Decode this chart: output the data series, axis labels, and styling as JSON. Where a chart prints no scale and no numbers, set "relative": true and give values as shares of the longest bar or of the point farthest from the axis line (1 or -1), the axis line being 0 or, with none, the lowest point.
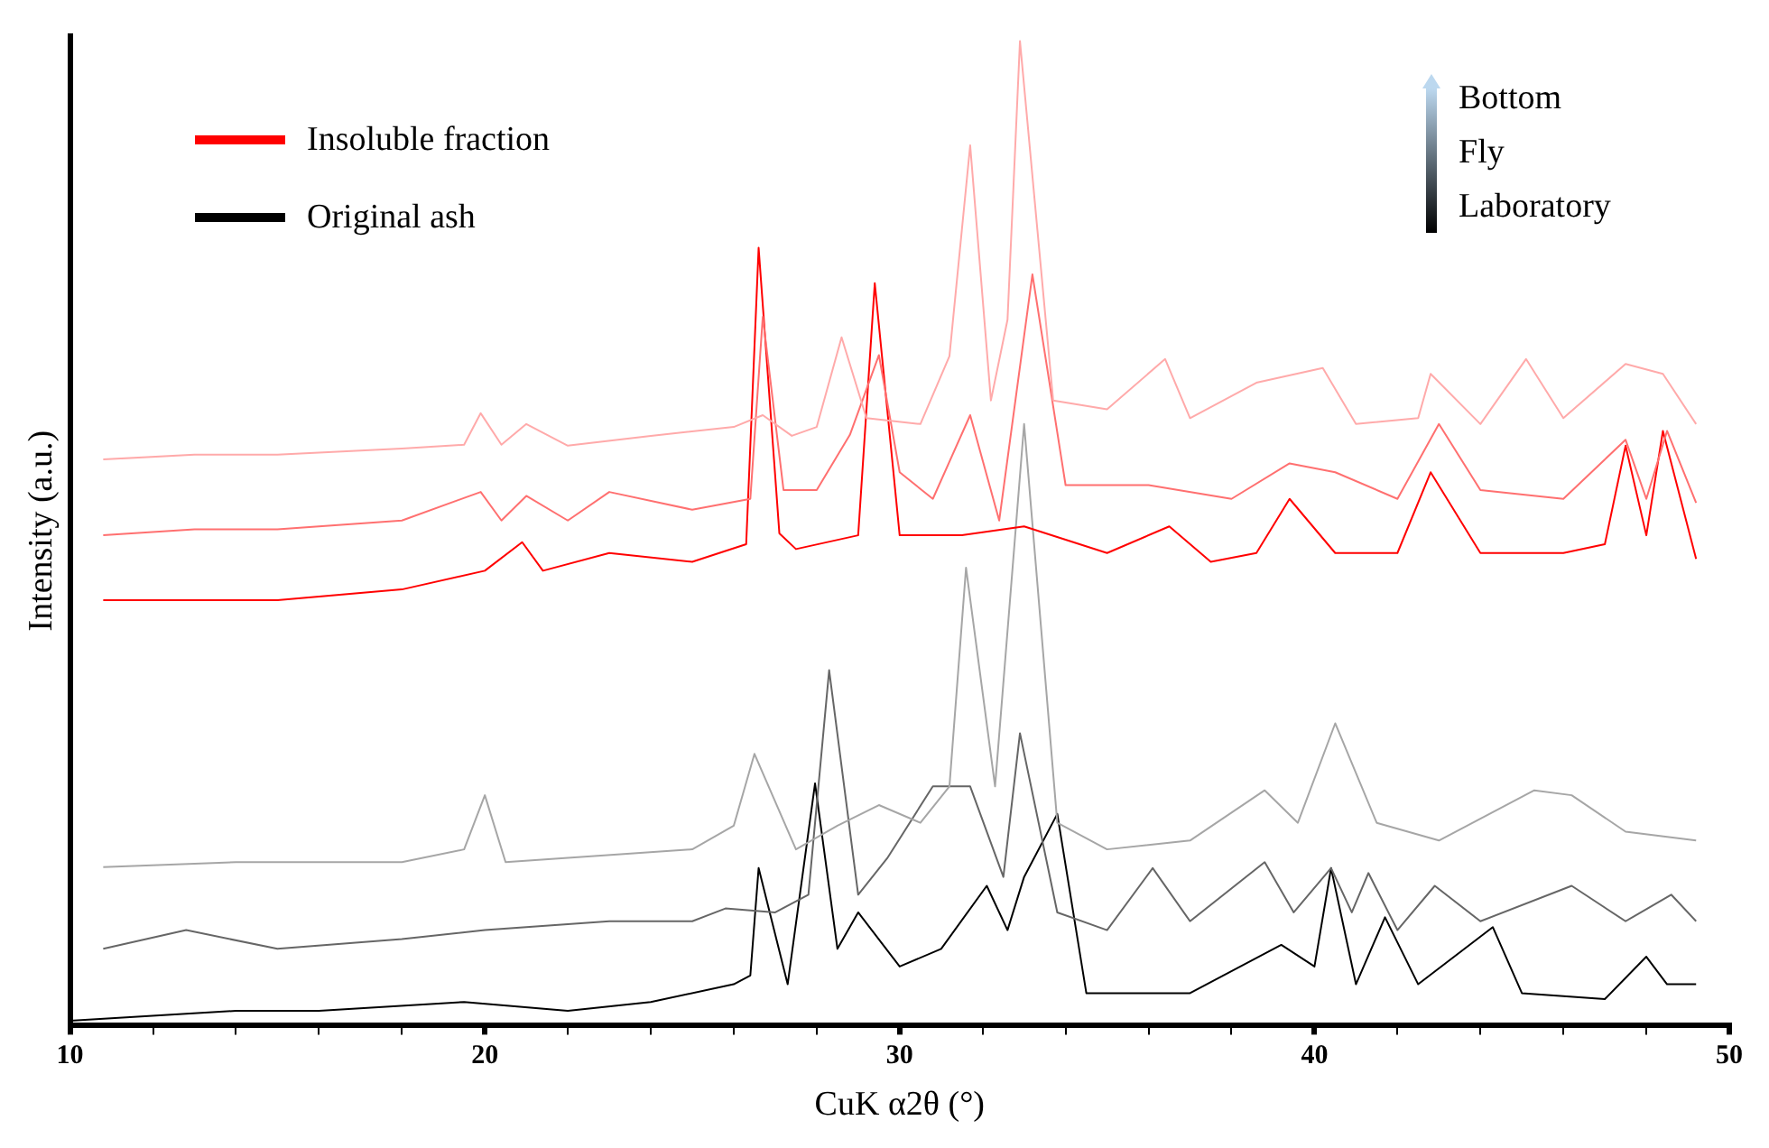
{
  "chart_data": {
    "type": "line",
    "relative": true,
    "xlabel": "CuK α2θ (°)",
    "ylabel": "Intensity (a.u.)",
    "legend": "top left",
    "grid": false,
    "xlim": [
      10,
      50
    ],
    "xticks": [
      10,
      {
        "value": 12,
        "label": null
      },
      {
        "value": 14,
        "label": null
      },
      {
        "value": 16,
        "label": null
      },
      {
        "value": 18,
        "label": null
      },
      20,
      {
        "value": 22,
        "label": null
      },
      {
        "value": 24,
        "label": null
      },
      {
        "value": 26,
        "label": null
      },
      {
        "value": 28,
        "label": null
      },
      30,
      {
        "value": 32,
        "label": null
      },
      {
        "value": 34,
        "label": null
      },
      {
        "value": 36,
        "label": null
      },
      {
        "value": 38,
        "label": null
      },
      40,
      {
        "value": 42,
        "label": null
      },
      {
        "value": 44,
        "label": null
      },
      {
        "value": 46,
        "label": null
      },
      {
        "value": 48,
        "label": null
      },
      50
    ],
    "annotations": [
      "Bottom",
      "Fly",
      "Laboratory"
    ],
    "series": [
      {
        "color": "#ffaaaa",
        "x": [
          10.8,
          13,
          15,
          18,
          19.5,
          19.9,
          20.4,
          21,
          22,
          24,
          26,
          26.7,
          27.4,
          28,
          28.6,
          29.2,
          30.5,
          31.2,
          31.7,
          32.2,
          32.6,
          32.9,
          33.7,
          35,
          36.4,
          37,
          38.6,
          40.2,
          41,
          42.5,
          42.8,
          44,
          45.1,
          46,
          47.5,
          48.4,
          49.2
        ],
        "values": [
          0.575,
          0.58,
          0.58,
          0.586,
          0.59,
          0.622,
          0.59,
          0.611,
          0.589,
          0.599,
          0.608,
          0.62,
          0.599,
          0.608,
          0.699,
          0.617,
          0.611,
          0.68,
          0.894,
          0.635,
          0.717,
          1,
          0.635,
          0.626,
          0.677,
          0.617,
          0.653,
          0.668,
          0.611,
          0.617,
          0.662,
          0.611,
          0.677,
          0.617,
          0.672,
          0.662,
          0.611
        ]
      },
      {
        "color": "#ff7070",
        "x": [
          10.8,
          13,
          15,
          18,
          19.9,
          20.4,
          21,
          22,
          23,
          25,
          26.4,
          26.7,
          27.2,
          28,
          28.8,
          29.5,
          30,
          30.8,
          31.7,
          32.4,
          33.2,
          34,
          36,
          38,
          39.4,
          40.5,
          42,
          43,
          44,
          46,
          47.5,
          48,
          48.5,
          49.2
        ],
        "values": [
          0.498,
          0.504,
          0.504,
          0.513,
          0.542,
          0.513,
          0.538,
          0.513,
          0.542,
          0.524,
          0.535,
          0.72,
          0.544,
          0.544,
          0.6,
          0.681,
          0.562,
          0.535,
          0.62,
          0.513,
          0.763,
          0.549,
          0.549,
          0.535,
          0.571,
          0.562,
          0.535,
          0.611,
          0.544,
          0.535,
          0.595,
          0.535,
          0.604,
          0.531
        ]
      },
      {
        "name": "Insoluble fraction",
        "color": "#ff0000",
        "x": [
          10.8,
          13,
          15,
          18,
          20,
          20.9,
          21.4,
          23,
          25,
          26.3,
          26.6,
          27.1,
          27.5,
          29,
          29.4,
          30,
          31.5,
          33,
          35,
          36.5,
          37.5,
          38.6,
          39.4,
          40.5,
          42,
          42.8,
          44,
          46,
          47,
          47.5,
          48,
          48.4,
          49.2
        ],
        "values": [
          0.432,
          0.432,
          0.432,
          0.443,
          0.462,
          0.491,
          0.462,
          0.48,
          0.471,
          0.489,
          0.79,
          0.5,
          0.484,
          0.498,
          0.754,
          0.498,
          0.498,
          0.507,
          0.48,
          0.507,
          0.471,
          0.48,
          0.535,
          0.48,
          0.48,
          0.562,
          0.48,
          0.48,
          0.489,
          0.589,
          0.498,
          0.604,
          0.474
        ]
      },
      {
        "color": "#a6a6a6",
        "x": [
          10.8,
          14,
          18,
          19.5,
          20,
          20.5,
          25,
          26,
          26.5,
          27.5,
          28.5,
          29.5,
          30.5,
          31.2,
          31.6,
          32.3,
          33,
          33.8,
          35,
          37,
          38.8,
          39.6,
          40.5,
          41.5,
          43,
          45.3,
          46.2,
          47.5,
          49.2
        ],
        "values": [
          0.161,
          0.166,
          0.166,
          0.179,
          0.234,
          0.166,
          0.179,
          0.203,
          0.276,
          0.179,
          0.203,
          0.224,
          0.206,
          0.243,
          0.465,
          0.243,
          0.611,
          0.206,
          0.179,
          0.188,
          0.239,
          0.206,
          0.307,
          0.206,
          0.188,
          0.239,
          0.234,
          0.197,
          0.188
        ]
      },
      {
        "color": "#666666",
        "x": [
          10.8,
          12.8,
          15,
          18,
          20,
          23,
          25,
          25.8,
          27,
          27.8,
          28.3,
          29,
          29.7,
          30.8,
          31.7,
          32.5,
          32.9,
          33.8,
          35,
          36.1,
          37,
          38.8,
          39.5,
          40.4,
          40.9,
          41.3,
          42,
          42.9,
          44,
          46.2,
          47.5,
          48.6,
          49.2
        ],
        "values": [
          0.078,
          0.097,
          0.078,
          0.088,
          0.097,
          0.106,
          0.106,
          0.119,
          0.115,
          0.133,
          0.361,
          0.133,
          0.17,
          0.243,
          0.243,
          0.151,
          0.297,
          0.115,
          0.097,
          0.16,
          0.106,
          0.166,
          0.115,
          0.16,
          0.115,
          0.155,
          0.097,
          0.142,
          0.106,
          0.142,
          0.106,
          0.133,
          0.106
        ]
      },
      {
        "name": "Original ash",
        "color": "#000000",
        "x": [
          10,
          14,
          16,
          19.5,
          22,
          24,
          26,
          26.4,
          26.6,
          27.3,
          27.96,
          28.5,
          29,
          30,
          31,
          32.1,
          32.6,
          33,
          33.8,
          34.5,
          37,
          39.2,
          40,
          40.4,
          41,
          41.7,
          42.5,
          44.3,
          45,
          47,
          48,
          48.5,
          49.2
        ],
        "values": [
          0.005,
          0.015,
          0.015,
          0.024,
          0.015,
          0.024,
          0.042,
          0.051,
          0.16,
          0.042,
          0.246,
          0.078,
          0.115,
          0.06,
          0.078,
          0.142,
          0.097,
          0.151,
          0.215,
          0.033,
          0.033,
          0.082,
          0.06,
          0.16,
          0.042,
          0.11,
          0.042,
          0.1,
          0.033,
          0.027,
          0.07,
          0.042,
          0.042
        ]
      }
    ]
  }
}
